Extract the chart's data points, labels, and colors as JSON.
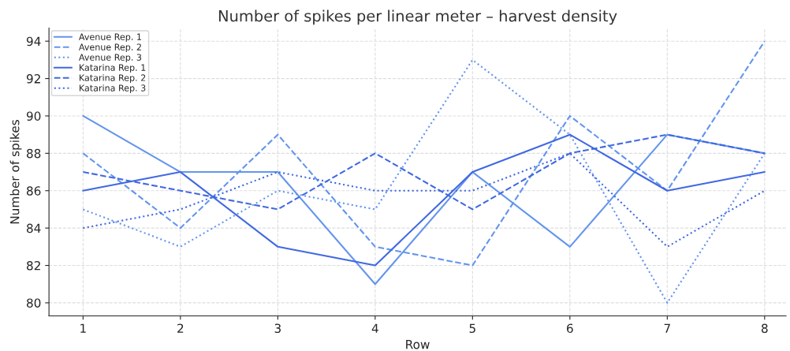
{
  "chart_data": {
    "type": "line",
    "title": "Number of spikes per linear meter – harvest density",
    "xlabel": "Row",
    "ylabel": "Number of spikes",
    "x": [
      1,
      2,
      3,
      4,
      5,
      6,
      7,
      8
    ],
    "series": [
      {
        "name": "Avenue Rep. 1",
        "color": "#6495ed",
        "line_style": "solid",
        "values": [
          90,
          87,
          87,
          81,
          87,
          83,
          89,
          88
        ]
      },
      {
        "name": "Avenue Rep. 2",
        "color": "#6495ed",
        "line_style": "dashed",
        "values": [
          88,
          84,
          89,
          83,
          82,
          90,
          86,
          94
        ]
      },
      {
        "name": "Avenue Rep. 3",
        "color": "#6495ed",
        "line_style": "dotted",
        "values": [
          85,
          83,
          86,
          85,
          93,
          89,
          80,
          88
        ]
      },
      {
        "name": "Katarina Rep. 1",
        "color": "#4169e1",
        "line_style": "solid",
        "values": [
          86,
          87,
          83,
          82,
          87,
          89,
          86,
          87
        ]
      },
      {
        "name": "Katarina Rep. 2",
        "color": "#4169e1",
        "line_style": "dashed",
        "values": [
          87,
          86,
          85,
          88,
          85,
          88,
          89,
          88
        ]
      },
      {
        "name": "Katarina Rep. 3",
        "color": "#4169e1",
        "line_style": "dotted",
        "values": [
          84,
          85,
          87,
          86,
          86,
          88,
          83,
          86
        ]
      }
    ],
    "xlim": [
      0.65,
      8.22
    ],
    "ylim": [
      79.3,
      94.7
    ],
    "xticks": [
      1,
      2,
      3,
      4,
      5,
      6,
      7,
      8
    ],
    "yticks": [
      80,
      82,
      84,
      86,
      88,
      90,
      92,
      94
    ],
    "grid": true,
    "legend": "top left"
  }
}
